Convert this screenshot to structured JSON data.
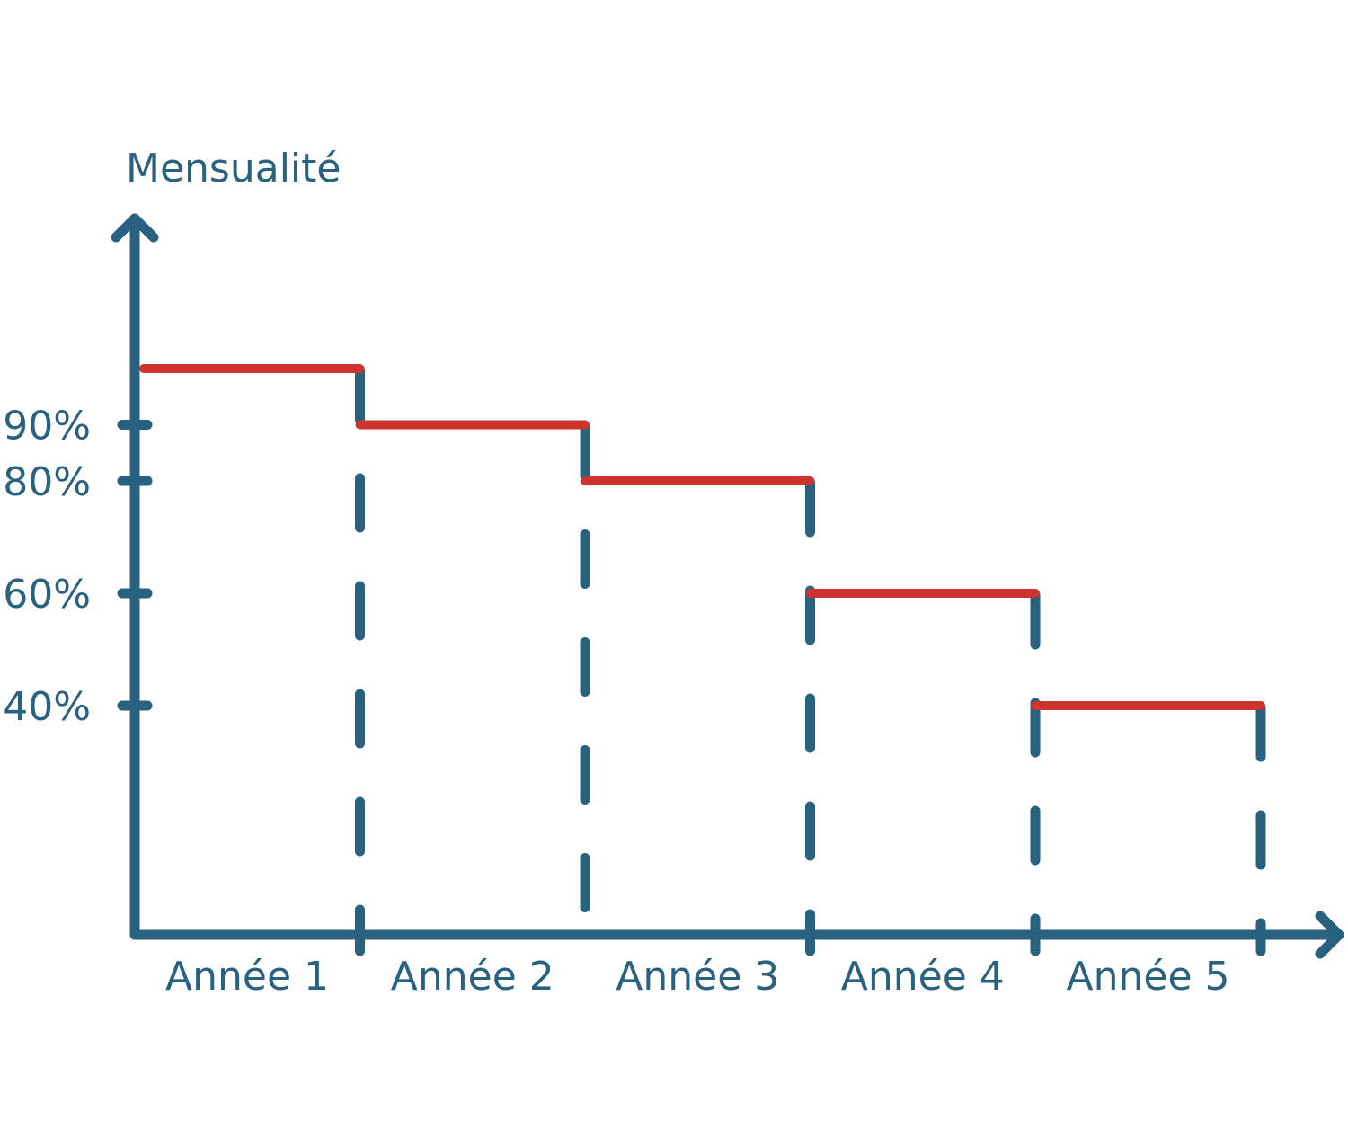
{
  "chart_data": {
    "type": "line",
    "ylabel": "Mensualité",
    "categories": [
      "Année 1",
      "Année 2",
      "Année 3",
      "Année 4",
      "Année 5"
    ],
    "y_ticks": [
      {
        "value": 90,
        "label": "90%"
      },
      {
        "value": 80,
        "label": "80%"
      },
      {
        "value": 60,
        "label": "60%"
      },
      {
        "value": 40,
        "label": "40%"
      }
    ],
    "series": [
      {
        "values": [
          100,
          90,
          80,
          60,
          40
        ],
        "color": "#cc342d"
      }
    ],
    "ylim": [
      0,
      100
    ],
    "grid": false,
    "axis_color": "#296180",
    "step_color": "#cc342d"
  }
}
